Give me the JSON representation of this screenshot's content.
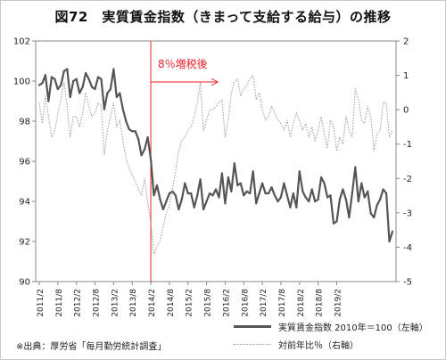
{
  "title": "図72　実質賃金指数（きまって支給する給与）の推移",
  "source": "※出典：厚労省「毎月勤労統計調査」",
  "annotation": {
    "text": "8％増税後",
    "color": "#e8222a"
  },
  "chart_data": {
    "type": "line",
    "x_tick_labels": [
      "2011/2",
      "2011/8",
      "2012/2",
      "2012/8",
      "2013/2",
      "2013/8",
      "2014/2",
      "2014/8",
      "2015/2",
      "2015/8",
      "2016/2",
      "2016/8",
      "2017/2",
      "2017/8",
      "2018/2",
      "2018/8",
      "2019/2"
    ],
    "y_left": {
      "min": 90,
      "max": 102,
      "step": 2,
      "ticks": [
        "90",
        "92",
        "94",
        "96",
        "98",
        "100",
        "102"
      ]
    },
    "y_right": {
      "min": -5,
      "max": 2,
      "step": 1,
      "ticks": [
        "-5",
        "-4",
        "-3",
        "-2",
        "-1",
        "0",
        "1",
        "2"
      ]
    },
    "event_index": 36,
    "series": [
      {
        "name": "実質賃金指数 2010年＝100（左軸）",
        "axis": "left",
        "style": "solid",
        "color": "#555555",
        "values": [
          99.8,
          99.9,
          100.3,
          99.0,
          100.2,
          100.1,
          99.6,
          99.8,
          100.5,
          100.6,
          99.2,
          100.0,
          100.1,
          99.4,
          99.7,
          100.4,
          100.1,
          99.7,
          99.6,
          100.2,
          100.1,
          98.6,
          99.4,
          99.6,
          100.6,
          99.2,
          99.4,
          98.6,
          98.0,
          97.6,
          97.5,
          97.5,
          97.1,
          96.3,
          96.6,
          97.2,
          96.1,
          94.3,
          94.8,
          94.1,
          93.6,
          94.0,
          94.4,
          94.5,
          94.3,
          93.6,
          94.1,
          94.9,
          94.4,
          94.4,
          93.7,
          94.3,
          95.1,
          93.6,
          94.0,
          94.4,
          94.3,
          94.6,
          94.2,
          95.4,
          93.9,
          95.2,
          94.5,
          95.9,
          94.8,
          94.9,
          94.3,
          94.5,
          94.4,
          95.5,
          93.9,
          94.4,
          94.9,
          94.4,
          94.4,
          94.7,
          94.3,
          94.0,
          94.2,
          94.9,
          94.3,
          93.7,
          94.4,
          93.7,
          95.5,
          94.5,
          94.2,
          94.0,
          94.6,
          94.0,
          94.1,
          95.2,
          94.9,
          94.2,
          94.3,
          92.9,
          93.0,
          94.1,
          94.6,
          94.1,
          93.2,
          94.4,
          95.7,
          94.0,
          94.9,
          94.2,
          94.5,
          93.4,
          93.2,
          93.8,
          94.1,
          94.6,
          94.4,
          92.0,
          92.5
        ],
        "markers": true
      },
      {
        "name": "対前年比％（右軸）",
        "axis": "right",
        "style": "dotted",
        "color": "#9a9a9a",
        "values": [
          0.2,
          -0.4,
          0.4,
          -0.2,
          -0.8,
          -0.6,
          -0.1,
          0.3,
          0.8,
          0.1,
          -0.8,
          -0.2,
          -0.2,
          -0.5,
          -0.1,
          0.5,
          0.1,
          -0.2,
          -0.1,
          0.2,
          0.1,
          -1.3,
          -0.6,
          -0.2,
          0.2,
          -0.5,
          -0.3,
          -0.9,
          -1.4,
          -1.7,
          -1.9,
          -2.1,
          -2.3,
          -2.5,
          -2.0,
          -2.7,
          -3.3,
          -4.2,
          -4.0,
          -3.8,
          -3.4,
          -3.0,
          -2.8,
          -2.3,
          -1.8,
          -1.2,
          -0.9,
          -0.8,
          -0.6,
          -0.5,
          -0.2,
          0.2,
          0.8,
          -0.6,
          -0.3,
          0.0,
          0.0,
          0.1,
          0.2,
          0.3,
          -0.8,
          -0.3,
          0.5,
          0.8,
          0.9,
          0.4,
          0.6,
          0.7,
          0.9,
          1.0,
          0.3,
          0.5,
          0.0,
          -0.3,
          -0.2,
          0.1,
          -0.1,
          -0.3,
          -0.4,
          -0.6,
          -0.3,
          -0.8,
          -0.4,
          -0.1,
          -0.3,
          -0.6,
          -0.4,
          -0.8,
          -0.5,
          -0.9,
          -0.6,
          -0.2,
          -0.7,
          -1.1,
          -0.3,
          -0.5,
          -1.2,
          -0.8,
          -1.0,
          -0.2,
          -0.6,
          -0.8,
          0.6,
          0.3,
          -0.3,
          -0.4,
          0.1,
          -0.2,
          -1.2,
          -0.7,
          -0.6,
          0.2,
          0.2,
          -0.8,
          -0.6
        ],
        "markers": false
      }
    ]
  }
}
